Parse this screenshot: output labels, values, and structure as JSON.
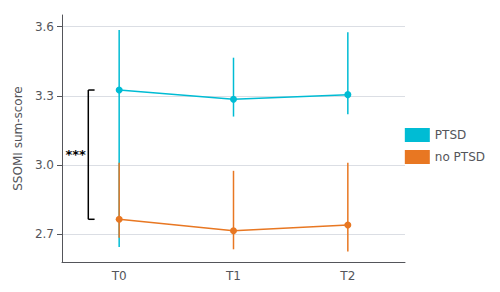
{
  "chart_data": {
    "type": "line",
    "categories": [
      "T0",
      "T1",
      "T2"
    ],
    "series": [
      {
        "name": "PTSD",
        "color": "#00BCD4",
        "marker": "circle",
        "values": [
          3.325,
          3.285,
          3.305
        ],
        "ci_low": [
          2.645,
          3.21,
          3.22
        ],
        "ci_high": [
          3.585,
          3.465,
          3.575
        ]
      },
      {
        "name": "no PTSD",
        "color": "#E87722",
        "marker": "circle",
        "values": [
          2.765,
          2.715,
          2.74
        ],
        "ci_low": [
          2.685,
          2.635,
          2.625
        ],
        "ci_high": [
          3.01,
          2.975,
          3.01
        ]
      }
    ],
    "ylabel": "SSOMI sum-score",
    "ylim": [
      2.58,
      3.65
    ],
    "yticks": [
      2.7,
      {
        "value": 3.0,
        "label": "3.0"
      },
      3.3,
      3.6
    ],
    "grid": true,
    "legend": "right",
    "annotations": [
      {
        "text": "***",
        "y_from": 2.765,
        "y_to": 3.325
      }
    ]
  }
}
